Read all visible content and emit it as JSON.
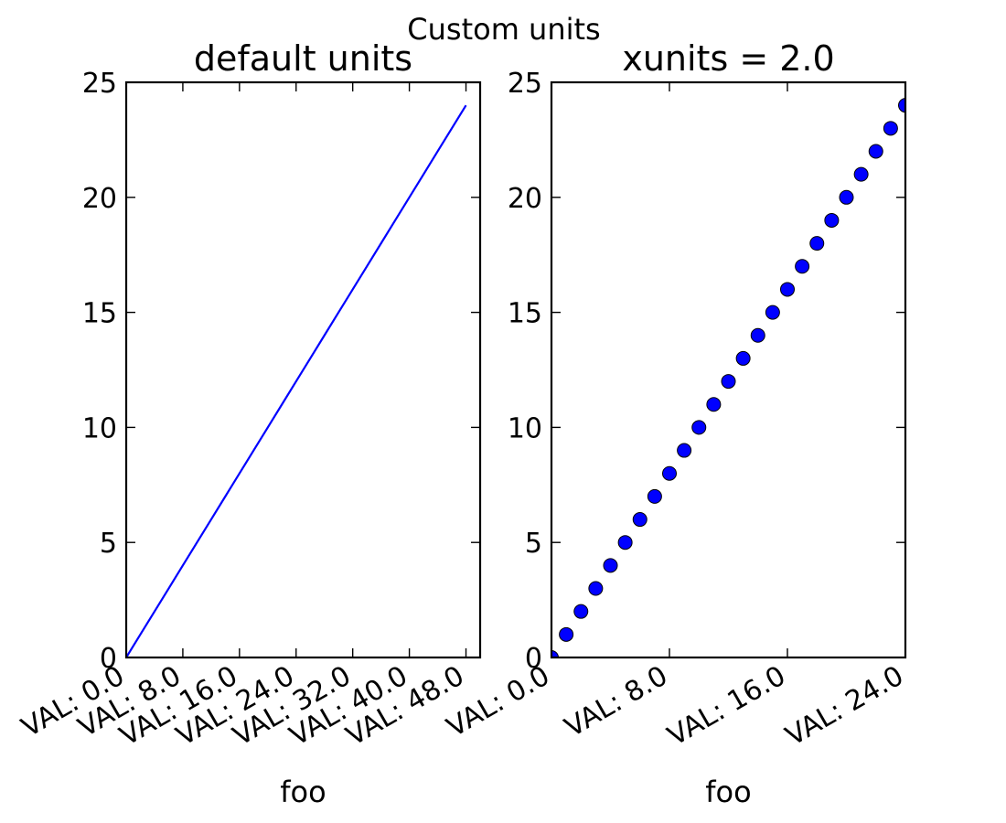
{
  "figure": {
    "suptitle": "Custom units"
  },
  "chart_data": [
    {
      "type": "line",
      "title": "default units",
      "xlabel": "foo",
      "ylabel": "",
      "color": "#0000ff",
      "xlim": [
        0,
        50
      ],
      "ylim": [
        0,
        25
      ],
      "xtick_values": [
        0,
        8,
        16,
        24,
        32,
        40,
        48
      ],
      "xtick_labels": [
        "VAL: 0.0",
        "VAL: 8.0",
        "VAL: 16.0",
        "VAL: 24.0",
        "VAL: 32.0",
        "VAL: 40.0",
        "VAL: 48.0"
      ],
      "ytick_values": [
        0,
        5,
        10,
        15,
        20,
        25
      ],
      "ytick_labels": [
        "0",
        "5",
        "10",
        "15",
        "20",
        "25"
      ],
      "grid": false,
      "series": [
        {
          "x": [
            0,
            2,
            4,
            6,
            8,
            10,
            12,
            14,
            16,
            18,
            20,
            22,
            24,
            26,
            28,
            30,
            32,
            34,
            36,
            38,
            40,
            42,
            44,
            46,
            48
          ],
          "y": [
            0,
            1,
            2,
            3,
            4,
            5,
            6,
            7,
            8,
            9,
            10,
            11,
            12,
            13,
            14,
            15,
            16,
            17,
            18,
            19,
            20,
            21,
            22,
            23,
            24
          ]
        }
      ]
    },
    {
      "type": "scatter",
      "title": "xunits = 2.0",
      "xlabel": "foo",
      "ylabel": "",
      "color": "#0000ff",
      "xlim": [
        0,
        24
      ],
      "ylim": [
        0,
        25
      ],
      "xtick_values": [
        0,
        8,
        16,
        24
      ],
      "xtick_labels": [
        "VAL: 0.0",
        "VAL: 8.0",
        "VAL: 16.0",
        "VAL: 24.0"
      ],
      "ytick_values": [
        0,
        5,
        10,
        15,
        20,
        25
      ],
      "ytick_labels": [
        "0",
        "5",
        "10",
        "15",
        "20",
        "25"
      ],
      "grid": false,
      "series": [
        {
          "x": [
            0,
            1,
            2,
            3,
            4,
            5,
            6,
            7,
            8,
            9,
            10,
            11,
            12,
            13,
            14,
            15,
            16,
            17,
            18,
            19,
            20,
            21,
            22,
            23,
            24
          ],
          "y": [
            0,
            1,
            2,
            3,
            4,
            5,
            6,
            7,
            8,
            9,
            10,
            11,
            12,
            13,
            14,
            15,
            16,
            17,
            18,
            19,
            20,
            21,
            22,
            23,
            24
          ]
        }
      ]
    }
  ]
}
